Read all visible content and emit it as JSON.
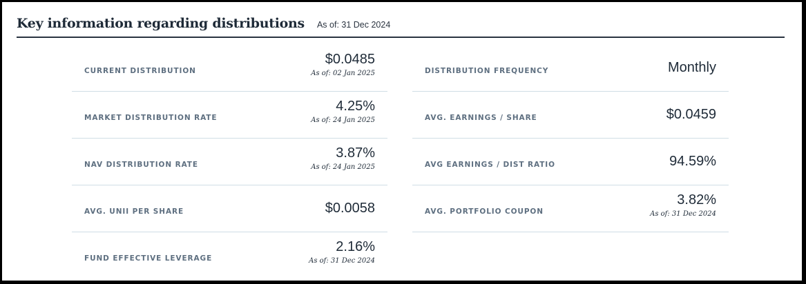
{
  "header": {
    "title": "Key information regarding distributions",
    "as_of": "As of: 31 Dec 2024"
  },
  "left_column": [
    {
      "label": "CURRENT DISTRIBUTION",
      "value": "$0.0485",
      "as_of": "As of: 02 Jan 2025"
    },
    {
      "label": "MARKET DISTRIBUTION RATE",
      "value": "4.25%",
      "as_of": "As of: 24 Jan 2025"
    },
    {
      "label": "NAV DISTRIBUTION RATE",
      "value": "3.87%",
      "as_of": "As of: 24 Jan 2025"
    },
    {
      "label": "AVG. UNII PER SHARE",
      "value": "$0.0058"
    },
    {
      "label": "FUND EFFECTIVE LEVERAGE",
      "value": "2.16%",
      "as_of": "As of: 31 Dec 2024"
    }
  ],
  "right_column": [
    {
      "label": "DISTRIBUTION FREQUENCY",
      "value": "Monthly"
    },
    {
      "label": "AVG. EARNINGS / SHARE",
      "value": "$0.0459"
    },
    {
      "label": "AVG EARNINGS / DIST RATIO",
      "value": "94.59%"
    },
    {
      "label": "AVG. PORTFOLIO COUPON",
      "value": "3.82%",
      "as_of": "As of: 31 Dec 2024"
    }
  ],
  "colors": {
    "heading": "#1e2a37",
    "label": "#5e6f80",
    "divider": "#cfdde5",
    "header_rule": "#28323f"
  }
}
